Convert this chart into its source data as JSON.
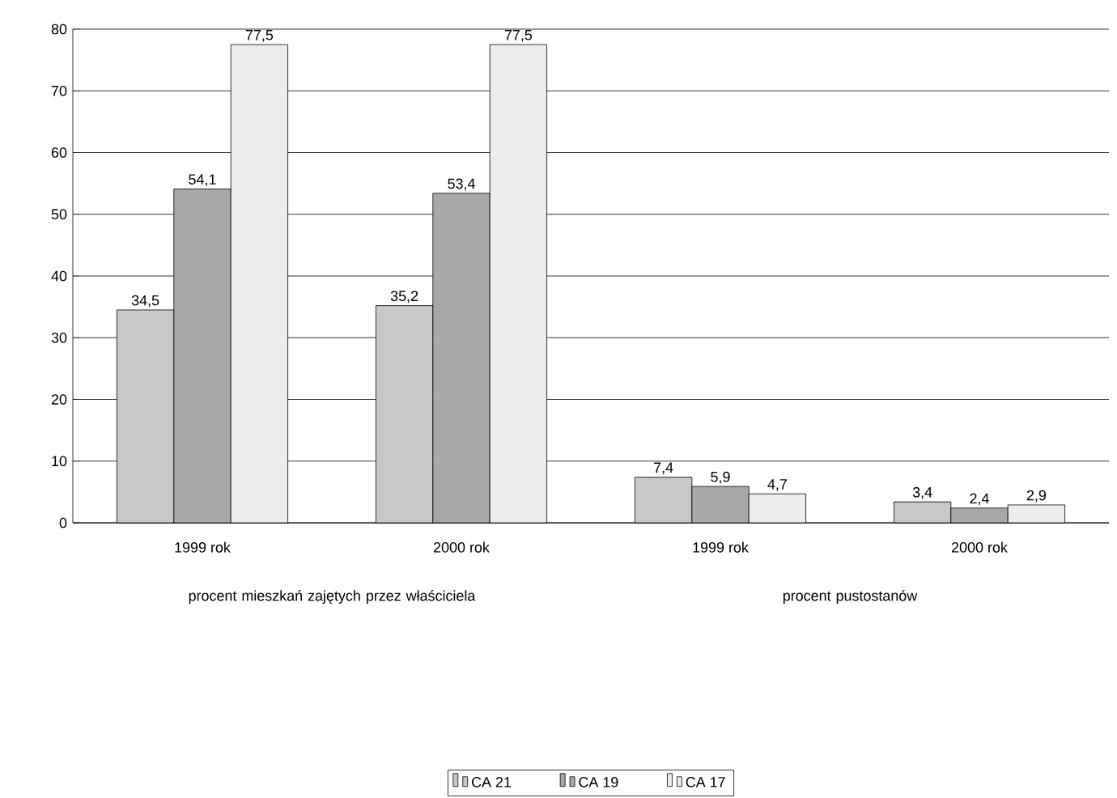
{
  "chart_data": {
    "type": "bar",
    "categories": [
      "1999 rok",
      "2000 rok",
      "1999 rok",
      "2000 rok"
    ],
    "series": [
      {
        "name": "CA 21",
        "color": "#c8c8c8",
        "values": [
          34.5,
          35.2,
          7.4,
          3.4
        ],
        "value_labels": [
          "34,5",
          "35,2",
          "7,4",
          "3,4"
        ]
      },
      {
        "name": "CA 19",
        "color": "#a8a8a8",
        "values": [
          54.1,
          53.4,
          5.9,
          2.4
        ],
        "value_labels": [
          "54,1",
          "53,4",
          "5,9",
          "2,4"
        ]
      },
      {
        "name": "CA 17",
        "color": "#ececec",
        "values": [
          77.5,
          77.5,
          4.7,
          2.9
        ],
        "value_labels": [
          "77,5",
          "77,5",
          "4,7",
          "2,9"
        ]
      }
    ],
    "ylim": [
      0,
      80
    ],
    "yticks": [
      0,
      10,
      20,
      30,
      40,
      50,
      60,
      70,
      80
    ],
    "grid": "y",
    "legend": "bottom",
    "annotations": [
      "procent mieszkań zajętych przez właściciela",
      "procent pustostanów"
    ]
  }
}
